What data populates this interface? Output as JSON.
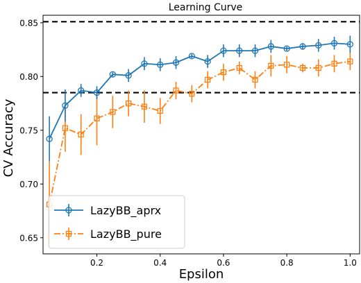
{
  "chart_data": {
    "type": "line",
    "title": "Learning Curve",
    "xlabel": "Epsilon",
    "ylabel": "CV Accuracy",
    "xlim": [
      0.03,
      1.03
    ],
    "ylim": [
      0.635,
      0.857
    ],
    "xticks": [
      0.2,
      0.4,
      0.6,
      0.8,
      1.0
    ],
    "xtick_labels": [
      "0.2",
      "0.4",
      "0.6",
      "0.8",
      "1.0"
    ],
    "yticks": [
      0.65,
      0.7,
      0.75,
      0.8,
      0.85
    ],
    "ytick_labels": [
      "0.65",
      "0.70",
      "0.75",
      "0.80",
      "0.85"
    ],
    "grid": false,
    "legend_position": "bottom-left",
    "reference_lines": [
      {
        "y": 0.851,
        "style": "dashed",
        "color": "#000000"
      },
      {
        "y": 0.785,
        "style": "dashed",
        "color": "#000000"
      }
    ],
    "x": [
      0.05,
      0.1,
      0.15,
      0.2,
      0.25,
      0.3,
      0.35,
      0.4,
      0.45,
      0.5,
      0.55,
      0.6,
      0.65,
      0.7,
      0.75,
      0.8,
      0.85,
      0.9,
      0.95,
      1.0
    ],
    "series": [
      {
        "name": "LazyBB_aprx",
        "color": "#1f77b4",
        "linestyle": "solid",
        "marker": "circle",
        "values": [
          0.742,
          0.773,
          0.787,
          0.785,
          0.802,
          0.801,
          0.812,
          0.811,
          0.813,
          0.819,
          0.814,
          0.824,
          0.824,
          0.824,
          0.828,
          0.826,
          0.828,
          0.829,
          0.831,
          0.83
        ],
        "errors": [
          0.021,
          0.015,
          0.006,
          0.006,
          0.002,
          0.006,
          0.006,
          0.006,
          0.006,
          0.002,
          0.006,
          0.006,
          0.006,
          0.006,
          0.006,
          0.002,
          0.003,
          0.006,
          0.006,
          0.008
        ]
      },
      {
        "name": "LazyBB_pure",
        "color": "#ff7f0e",
        "linestyle": "dashdot",
        "marker": "square",
        "values": [
          0.681,
          0.752,
          0.746,
          0.761,
          0.767,
          0.775,
          0.772,
          0.768,
          0.787,
          0.784,
          0.797,
          0.804,
          0.808,
          0.797,
          0.81,
          0.811,
          0.808,
          0.808,
          0.812,
          0.814
        ],
        "errors": [
          0.04,
          0.022,
          0.019,
          0.025,
          0.015,
          0.012,
          0.015,
          0.012,
          0.008,
          0.008,
          0.008,
          0.008,
          0.006,
          0.008,
          0.01,
          0.008,
          0.004,
          0.008,
          0.008,
          0.008
        ]
      }
    ]
  }
}
